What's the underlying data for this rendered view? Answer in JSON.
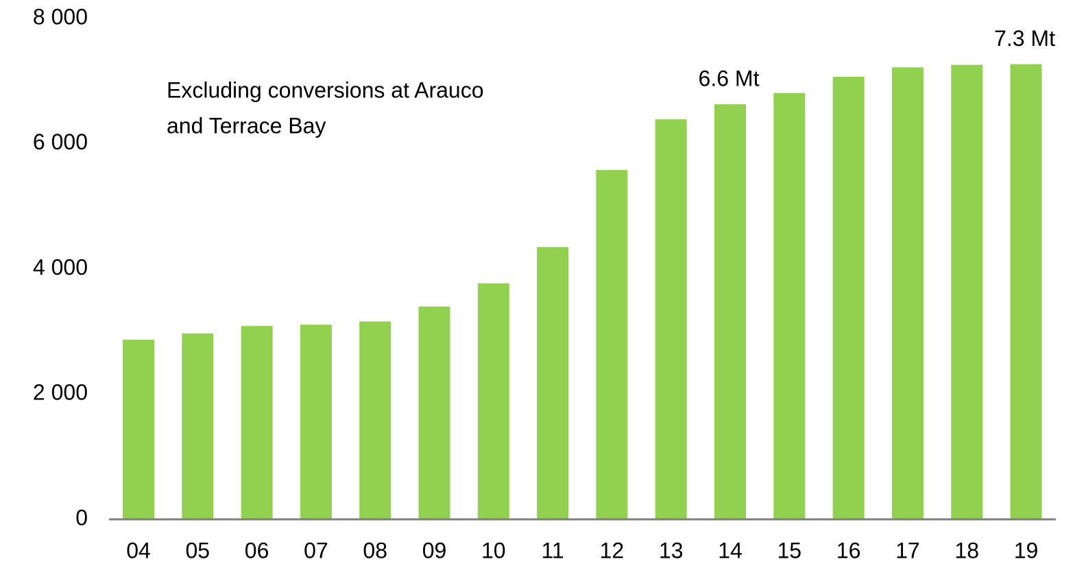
{
  "chart_data": {
    "type": "bar",
    "annotation": [
      "Excluding conversions at Arauco",
      "and Terrace Bay"
    ],
    "categories": [
      "04",
      "05",
      "06",
      "07",
      "08",
      "09",
      "10",
      "11",
      "12",
      "13",
      "14",
      "15",
      "16",
      "17",
      "18",
      "19"
    ],
    "values": [
      2870,
      2970,
      3090,
      3110,
      3160,
      3400,
      3770,
      4350,
      5580,
      6390,
      6630,
      6810,
      7070,
      7220,
      7260,
      7270
    ],
    "value_labels": [
      null,
      null,
      null,
      null,
      null,
      null,
      null,
      null,
      null,
      null,
      "6.6 Mt",
      null,
      null,
      null,
      null,
      "7.3 Mt"
    ],
    "color": "#92d050",
    "ylim": [
      0,
      8000
    ],
    "yticks": [
      0,
      {
        "value": 2000,
        "label": "2 000"
      },
      {
        "value": 4000,
        "label": "4 000"
      },
      {
        "value": 6000,
        "label": "6 000"
      },
      {
        "value": 8000,
        "label": "8 000"
      }
    ],
    "grid": false
  }
}
